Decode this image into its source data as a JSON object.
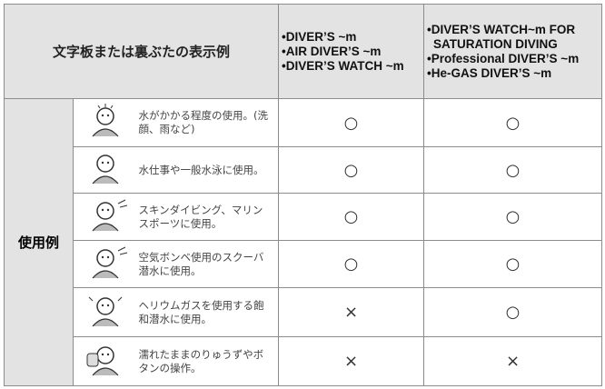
{
  "header": {
    "title": "文字板または裏ぶたの表示例",
    "columns": [
      [
        "DIVER’S ~m",
        "AIR DIVER’S ~m",
        "DIVER’S WATCH ~m"
      ],
      [
        "DIVER’S WATCH~m FOR SATURATION DIVING",
        "Professional DIVER’S ~m",
        "He-GAS DIVER’S ~m"
      ]
    ]
  },
  "table": {
    "label": "使用例",
    "rows": [
      {
        "description": "水がかかる程度の使用。(洗顔、雨など)",
        "marks": [
          "○",
          "○"
        ]
      },
      {
        "description": "水仕事や一般水泳に使用。",
        "marks": [
          "○",
          "○"
        ]
      },
      {
        "description": "スキンダイビング、マリンスポーツに使用。",
        "marks": [
          "○",
          "○"
        ]
      },
      {
        "description": "空気ボンベ使用のスクーバ潜水に使用。",
        "marks": [
          "○",
          "○"
        ]
      },
      {
        "description": "ヘリウムガスを使用する飽和潜水に使用。",
        "marks": [
          "×",
          "○"
        ]
      },
      {
        "description": "濡れたままのりゅうずやボタンの操作。",
        "marks": [
          "×",
          "×"
        ]
      }
    ]
  }
}
